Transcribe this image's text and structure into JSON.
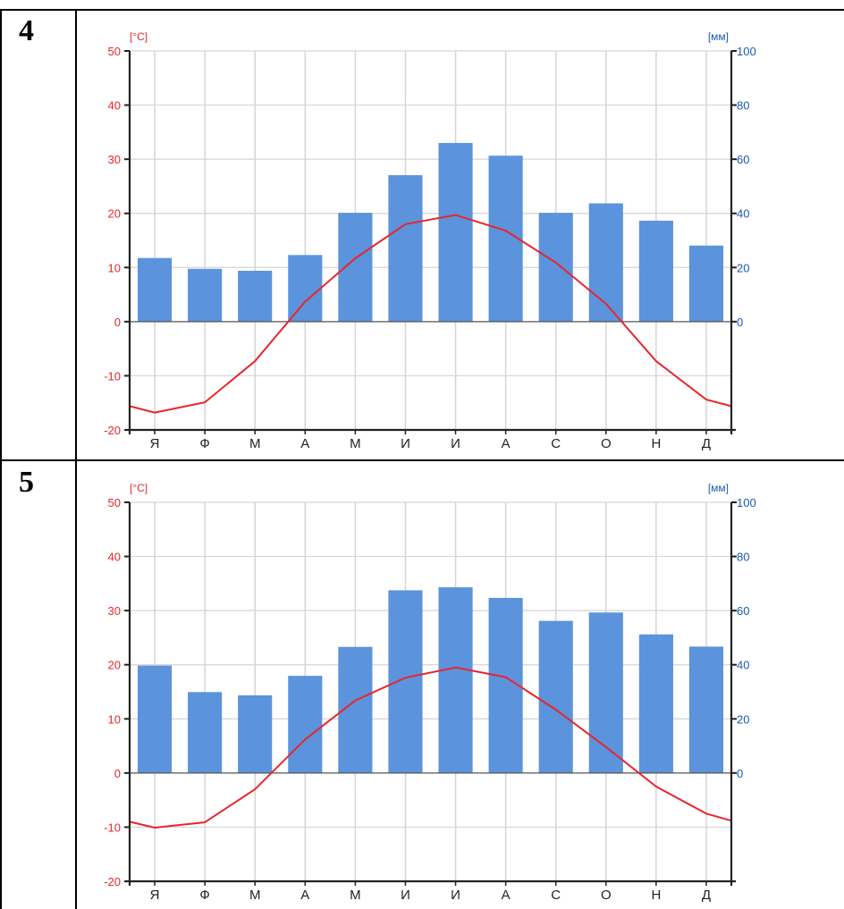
{
  "panels": [
    {
      "number": "4"
    },
    {
      "number": "5"
    }
  ],
  "colors": {
    "bars": "#5b93dd",
    "temperature_line": "#e8262b",
    "left_axis_text": "#e8262b",
    "right_axis_text": "#1a5ab4",
    "grid": "#d5d5d5",
    "axis": "#222222"
  },
  "chart_data": [
    {
      "type": "bar",
      "title": "",
      "categories": [
        "Я",
        "Ф",
        "М",
        "А",
        "М",
        "И",
        "И",
        "А",
        "С",
        "О",
        "Н",
        "Д"
      ],
      "y_left": {
        "label": "[°C]",
        "ylim": [
          -20,
          50
        ],
        "ticks": [
          50,
          40,
          30,
          20,
          10,
          0,
          -10,
          -20
        ]
      },
      "y_right": {
        "label": "[мм]",
        "ylim": [
          -40,
          100
        ],
        "ticks": [
          100,
          80,
          60,
          40,
          20,
          0
        ]
      },
      "grid": true,
      "series": [
        {
          "type": "bar",
          "axis": "right",
          "values": [
            23.5,
            19.5,
            18.8,
            24.6,
            40.2,
            54.1,
            66.0,
            61.3,
            40.2,
            43.7,
            37.3,
            28.1
          ]
        },
        {
          "type": "line",
          "axis": "left",
          "values": [
            -16.8,
            -14.9,
            -7.3,
            3.7,
            11.7,
            18.0,
            19.7,
            16.8,
            10.9,
            3.3,
            -7.3,
            -14.4
          ],
          "edge_values": [
            -15.6,
            -15.6
          ]
        }
      ]
    },
    {
      "type": "bar",
      "title": "",
      "categories": [
        "Я",
        "Ф",
        "М",
        "А",
        "М",
        "И",
        "И",
        "А",
        "С",
        "О",
        "Н",
        "Д"
      ],
      "y_left": {
        "label": "[°C]",
        "ylim": [
          -20,
          50
        ],
        "ticks": [
          50,
          40,
          30,
          20,
          10,
          0,
          -10,
          -20
        ]
      },
      "y_right": {
        "label": "[мм]",
        "ylim": [
          -40,
          100
        ],
        "ticks": [
          100,
          80,
          60,
          40,
          20,
          0
        ]
      },
      "grid": true,
      "series": [
        {
          "type": "bar",
          "axis": "right",
          "values": [
            39.7,
            29.9,
            28.7,
            35.9,
            46.6,
            67.5,
            68.6,
            64.7,
            56.2,
            59.3,
            51.2,
            46.7
          ]
        },
        {
          "type": "line",
          "axis": "left",
          "values": [
            -10.1,
            -9.1,
            -3.0,
            6.2,
            13.4,
            17.6,
            19.5,
            17.7,
            11.7,
            4.8,
            -2.5,
            -7.5
          ],
          "edge_values": [
            -9.0,
            -8.8
          ]
        }
      ]
    }
  ]
}
